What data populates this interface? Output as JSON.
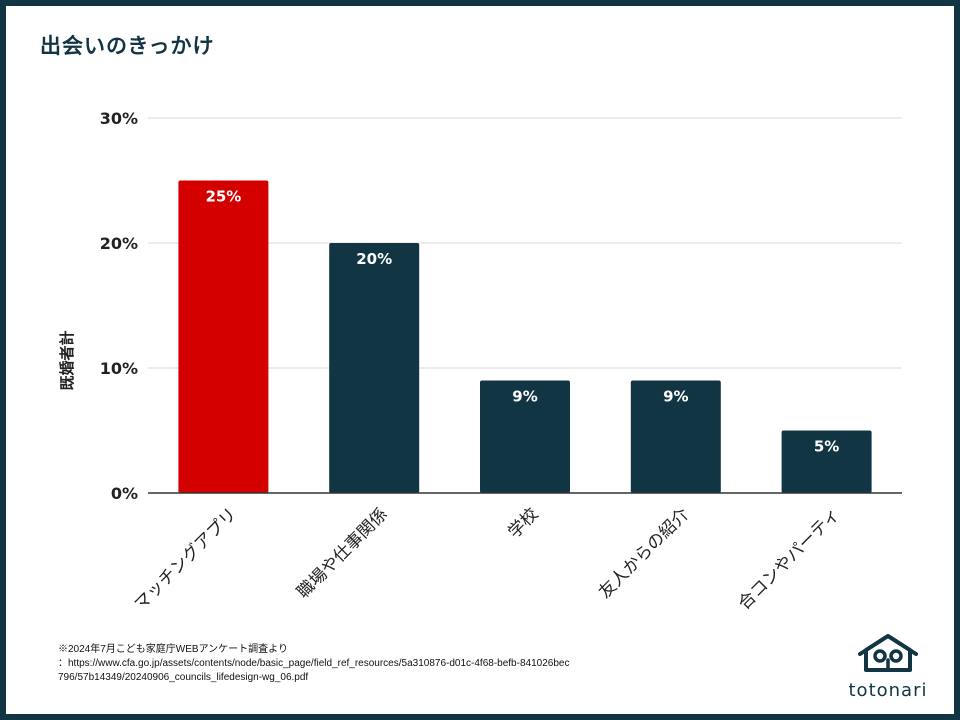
{
  "header": {
    "title": "出会いのきっかけ"
  },
  "chart_data": {
    "type": "bar",
    "title": "出会いのきっかけ",
    "xlabel": "",
    "ylabel": "既婚者計",
    "ylim": [
      0,
      30
    ],
    "yticks": [
      0,
      10,
      20,
      30
    ],
    "ytick_labels": [
      "0%",
      "10%",
      "20%",
      "30%"
    ],
    "grid": true,
    "categories": [
      "マッチングアプリ",
      "職場や仕事関係",
      "学校",
      "友人からの紹介",
      "合コンやパーティ"
    ],
    "values": [
      25,
      20,
      9,
      9,
      5
    ],
    "data_labels": [
      "25%",
      "20%",
      "9%",
      "9%",
      "5%"
    ],
    "colors": [
      "#d40000",
      "#123544",
      "#123544",
      "#123544",
      "#123544"
    ],
    "label_color": "#ffffff"
  },
  "source": {
    "line1": "※2024年7月こども家庭庁WEBアンケート調査より",
    "line2": "：https://www.cfa.go.jp/assets/contents/node/basic_page/field_ref_resources/5a310876-d01c-4f68-befb-841026bec",
    "line3": "796/57b14349/20240906_councils_lifedesign-wg_06.pdf"
  },
  "logo": {
    "text": "totonari",
    "icon": "house-face-icon"
  },
  "colors": {
    "brand": "#123544",
    "accent": "#d40000",
    "grid": "#d9d9d9"
  }
}
